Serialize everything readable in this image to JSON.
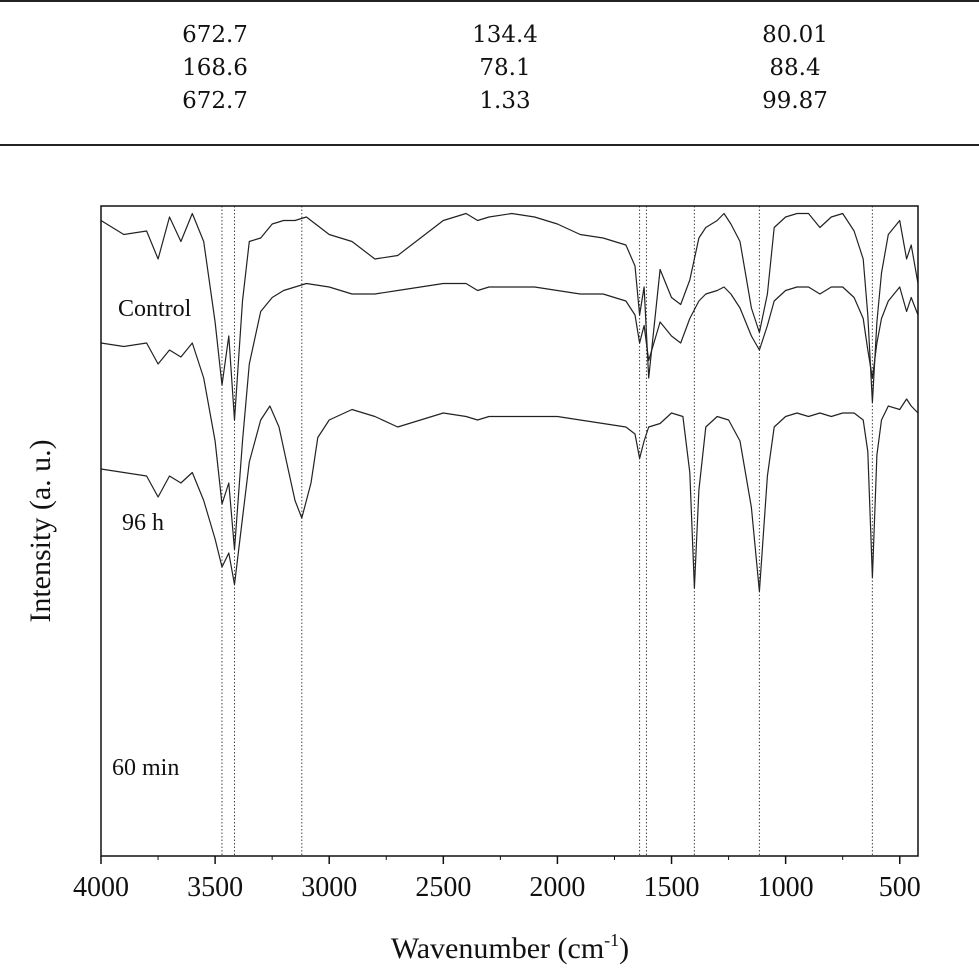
{
  "table": {
    "rows": [
      [
        "672.7",
        "134.4",
        "80.01"
      ],
      [
        "168.6",
        "78.1",
        "88.4"
      ],
      [
        "672.7",
        "1.33",
        "99.87"
      ]
    ]
  },
  "chart_data": {
    "type": "line",
    "xlabel": "Wavenumber (cm",
    "xlabel_sup": "-1",
    "xlabel_close": ")",
    "ylabel": "Intensity (a. u.)",
    "xlim": [
      4000,
      420
    ],
    "x_reversed": true,
    "xticks": [
      4000,
      3500,
      3000,
      2500,
      2000,
      1500,
      1000,
      500
    ],
    "xtick_labels": [
      "4000",
      "3500",
      "3000",
      "2500",
      "2000",
      "1500",
      "1000",
      "500"
    ],
    "y_units": "arbitrary, stacked offsets",
    "reference_lines_x": [
      3470,
      3415,
      3120,
      1640,
      1610,
      1400,
      1115,
      620
    ],
    "series": [
      {
        "name": "Control",
        "x": [
          4000,
          3900,
          3800,
          3750,
          3700,
          3650,
          3600,
          3550,
          3500,
          3470,
          3440,
          3415,
          3380,
          3350,
          3300,
          3250,
          3200,
          3150,
          3100,
          3000,
          2900,
          2800,
          2700,
          2600,
          2500,
          2400,
          2350,
          2300,
          2200,
          2100,
          2000,
          1900,
          1800,
          1700,
          1660,
          1640,
          1620,
          1600,
          1550,
          1500,
          1460,
          1420,
          1380,
          1350,
          1300,
          1270,
          1240,
          1200,
          1150,
          1115,
          1080,
          1050,
          1000,
          950,
          900,
          850,
          800,
          750,
          700,
          660,
          640,
          620,
          600,
          580,
          550,
          500,
          470,
          450,
          420
        ],
        "y": [
          0.97,
          0.93,
          0.94,
          0.86,
          0.98,
          0.91,
          0.99,
          0.91,
          0.68,
          0.5,
          0.64,
          0.4,
          0.74,
          0.91,
          0.92,
          0.96,
          0.97,
          0.97,
          0.98,
          0.93,
          0.91,
          0.86,
          0.87,
          0.92,
          0.97,
          0.99,
          0.97,
          0.98,
          0.99,
          0.98,
          0.96,
          0.93,
          0.92,
          0.9,
          0.84,
          0.7,
          0.78,
          0.52,
          0.83,
          0.75,
          0.73,
          0.8,
          0.92,
          0.95,
          0.97,
          0.99,
          0.96,
          0.91,
          0.72,
          0.65,
          0.76,
          0.95,
          0.98,
          0.99,
          0.99,
          0.95,
          0.98,
          0.99,
          0.94,
          0.86,
          0.7,
          0.45,
          0.68,
          0.82,
          0.93,
          0.97,
          0.86,
          0.9,
          0.79
        ]
      },
      {
        "name": "96 h",
        "x": [
          4000,
          3900,
          3800,
          3750,
          3700,
          3650,
          3600,
          3550,
          3500,
          3470,
          3440,
          3415,
          3380,
          3350,
          3300,
          3250,
          3200,
          3150,
          3100,
          3000,
          2900,
          2800,
          2700,
          2600,
          2500,
          2400,
          2350,
          2300,
          2200,
          2100,
          2000,
          1900,
          1800,
          1700,
          1660,
          1640,
          1620,
          1600,
          1550,
          1500,
          1460,
          1420,
          1380,
          1350,
          1300,
          1270,
          1240,
          1200,
          1150,
          1115,
          1080,
          1050,
          1000,
          950,
          900,
          850,
          800,
          750,
          700,
          660,
          640,
          620,
          600,
          580,
          550,
          500,
          470,
          450,
          420
        ],
        "y": [
          0.62,
          0.61,
          0.62,
          0.56,
          0.6,
          0.58,
          0.62,
          0.52,
          0.34,
          0.16,
          0.22,
          0.03,
          0.34,
          0.56,
          0.71,
          0.75,
          0.77,
          0.78,
          0.79,
          0.78,
          0.76,
          0.76,
          0.77,
          0.78,
          0.79,
          0.79,
          0.77,
          0.78,
          0.78,
          0.78,
          0.77,
          0.76,
          0.76,
          0.74,
          0.7,
          0.62,
          0.67,
          0.57,
          0.68,
          0.64,
          0.62,
          0.69,
          0.74,
          0.76,
          0.77,
          0.78,
          0.76,
          0.72,
          0.64,
          0.6,
          0.67,
          0.74,
          0.77,
          0.78,
          0.78,
          0.76,
          0.78,
          0.78,
          0.75,
          0.69,
          0.6,
          0.52,
          0.62,
          0.69,
          0.74,
          0.78,
          0.71,
          0.75,
          0.7
        ]
      },
      {
        "name": "60 min",
        "x": [
          4000,
          3900,
          3800,
          3750,
          3700,
          3650,
          3600,
          3550,
          3500,
          3470,
          3440,
          3415,
          3380,
          3350,
          3300,
          3260,
          3220,
          3180,
          3150,
          3120,
          3080,
          3050,
          3000,
          2900,
          2800,
          2700,
          2600,
          2500,
          2400,
          2350,
          2300,
          2200,
          2100,
          2000,
          1900,
          1800,
          1700,
          1660,
          1640,
          1620,
          1600,
          1550,
          1500,
          1450,
          1420,
          1400,
          1380,
          1350,
          1300,
          1250,
          1200,
          1150,
          1115,
          1080,
          1050,
          1000,
          950,
          900,
          850,
          800,
          750,
          700,
          660,
          640,
          620,
          600,
          580,
          550,
          500,
          470,
          450,
          420
        ],
        "y": [
          0.26,
          0.25,
          0.24,
          0.18,
          0.24,
          0.22,
          0.25,
          0.17,
          0.06,
          -0.02,
          0.02,
          -0.07,
          0.12,
          0.28,
          0.4,
          0.44,
          0.38,
          0.26,
          0.17,
          0.12,
          0.22,
          0.35,
          0.4,
          0.43,
          0.41,
          0.38,
          0.4,
          0.42,
          0.41,
          0.4,
          0.41,
          0.41,
          0.41,
          0.41,
          0.4,
          0.39,
          0.38,
          0.36,
          0.29,
          0.34,
          0.38,
          0.39,
          0.42,
          0.41,
          0.25,
          -0.08,
          0.2,
          0.38,
          0.41,
          0.4,
          0.34,
          0.15,
          -0.09,
          0.24,
          0.38,
          0.41,
          0.42,
          0.41,
          0.42,
          0.41,
          0.42,
          0.42,
          0.4,
          0.31,
          -0.05,
          0.3,
          0.4,
          0.44,
          0.43,
          0.46,
          0.44,
          0.42
        ]
      }
    ]
  }
}
